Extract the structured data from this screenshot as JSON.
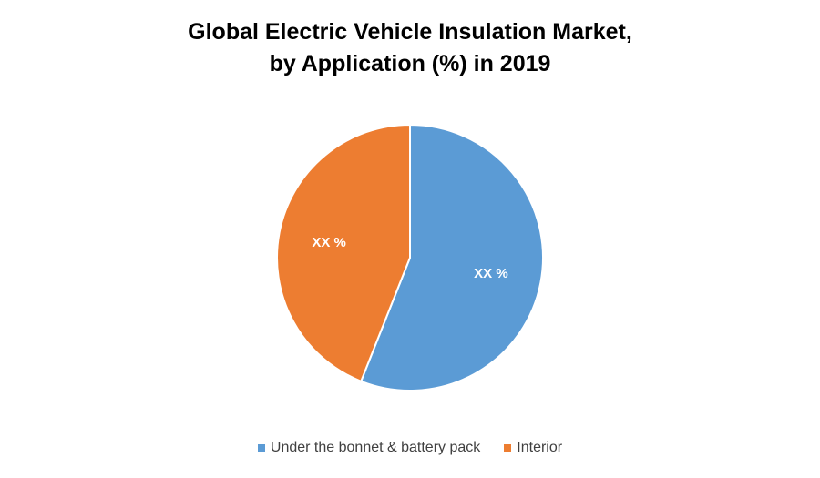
{
  "chart_data": {
    "type": "pie",
    "title": "Global Electric Vehicle Insulation Market, by Application (%) in 2019",
    "title_lines": [
      "Global Electric Vehicle Insulation Market,",
      "by Application (%) in 2019"
    ],
    "categories": [
      "Under the bonnet & battery pack",
      "Interior"
    ],
    "values": [
      56,
      44
    ],
    "data_labels": [
      "XX %",
      "XX %"
    ],
    "colors": [
      "#5B9BD5",
      "#ED7D31"
    ],
    "start_angle": "12 o'clock, clockwise",
    "legend_position": "bottom"
  }
}
